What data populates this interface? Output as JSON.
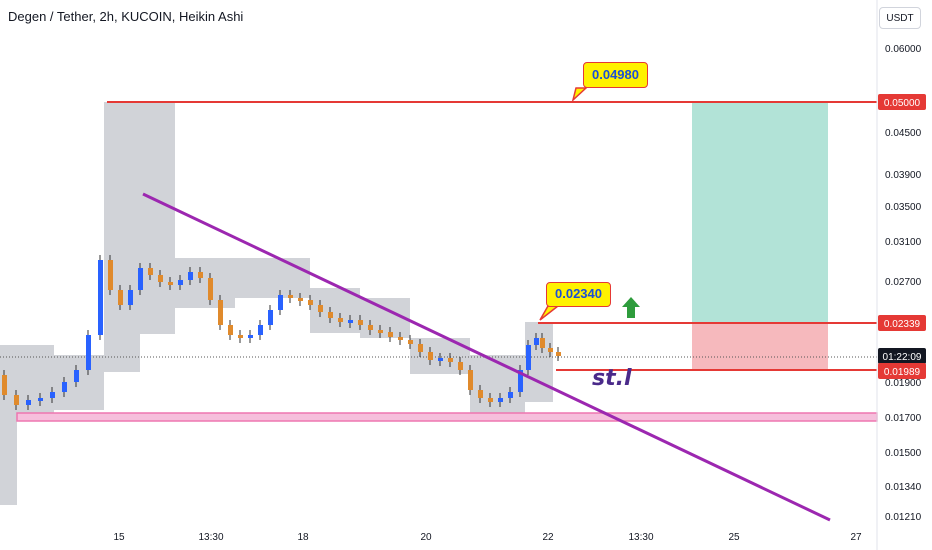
{
  "header": {
    "title": "Degen / Tether, 2h, KUCOIN, Heikin Ashi",
    "currency": "USDT"
  },
  "chart_data": {
    "type": "candlestick",
    "symbol": "Degen / Tether",
    "interval": "2h",
    "exchange": "KUCOIN",
    "style": "Heikin Ashi",
    "y_tick_labels": [
      "0.06000",
      "0.04500",
      "0.03900",
      "0.03500",
      "0.03100",
      "0.02700",
      "0.01900",
      "0.01700",
      "0.01500",
      "0.01340",
      "0.01210"
    ],
    "x_tick_labels": [
      "15",
      "13:30",
      "18",
      "20",
      "22",
      "13:30",
      "25",
      "27"
    ],
    "price_levels": [
      {
        "label": "0.05000",
        "value": 0.05,
        "color": "#e53935"
      },
      {
        "label": "0.02339",
        "value": 0.02339,
        "color": "#e53935"
      },
      {
        "label": "01:22:09",
        "value": 0.0213,
        "color": "#131722"
      },
      {
        "label": "0.01989",
        "value": 0.01989,
        "color": "#e53935"
      }
    ],
    "callouts": [
      {
        "label": "0.04980",
        "value": 0.0498
      },
      {
        "label": "0.02340",
        "value": 0.0234
      }
    ],
    "annotation": "st.l",
    "support_level": 0.0169,
    "colors": {
      "up": "#2962ff",
      "down": "#e08a2c",
      "resistance": "#e53935",
      "support": "#ee77b0",
      "trendline": "#9c27b0",
      "target_zone": "#b2e3d7",
      "stop_zone": "#f6b9bd",
      "shadow_box": "#d1d3d8",
      "arrow": "#2e9c3c"
    }
  }
}
